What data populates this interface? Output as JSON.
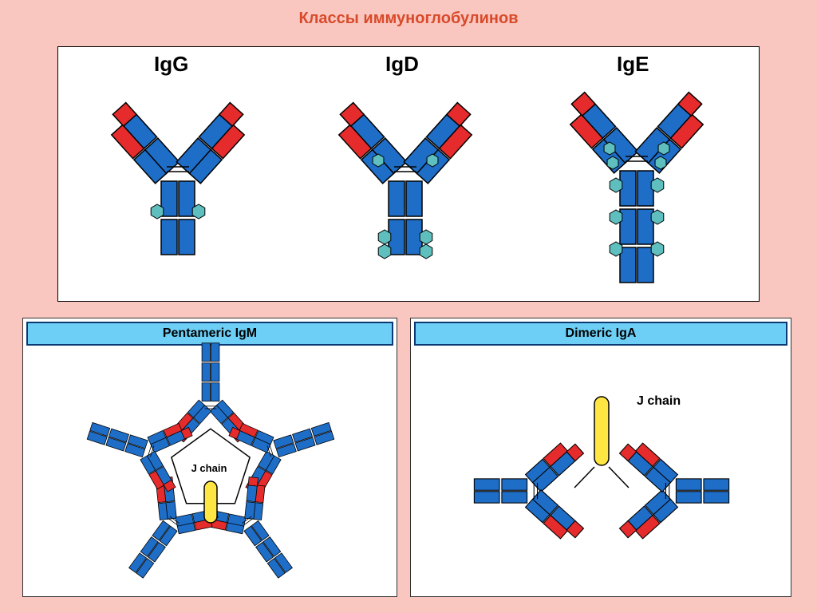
{
  "title": "Классы иммуноглобулинов",
  "title_color": "#d84a2a",
  "slide_bg": "#f9c7c0",
  "panel_bg": "#ffffff",
  "colors": {
    "blue": "#1e6ec8",
    "red": "#e52b2b",
    "teal": "#5fbfbf",
    "yellow": "#ffe642",
    "black": "#000000",
    "header_fill": "#6dcff6",
    "header_border": "#0b3a73"
  },
  "top": {
    "labels": [
      "IgG",
      "IgD",
      "IgE"
    ],
    "label_fontsize": 26
  },
  "igm": {
    "header": "Pentameric IgM",
    "jchain": "J chain"
  },
  "iga": {
    "header": "Dimeric IgA",
    "jchain": "J chain"
  }
}
